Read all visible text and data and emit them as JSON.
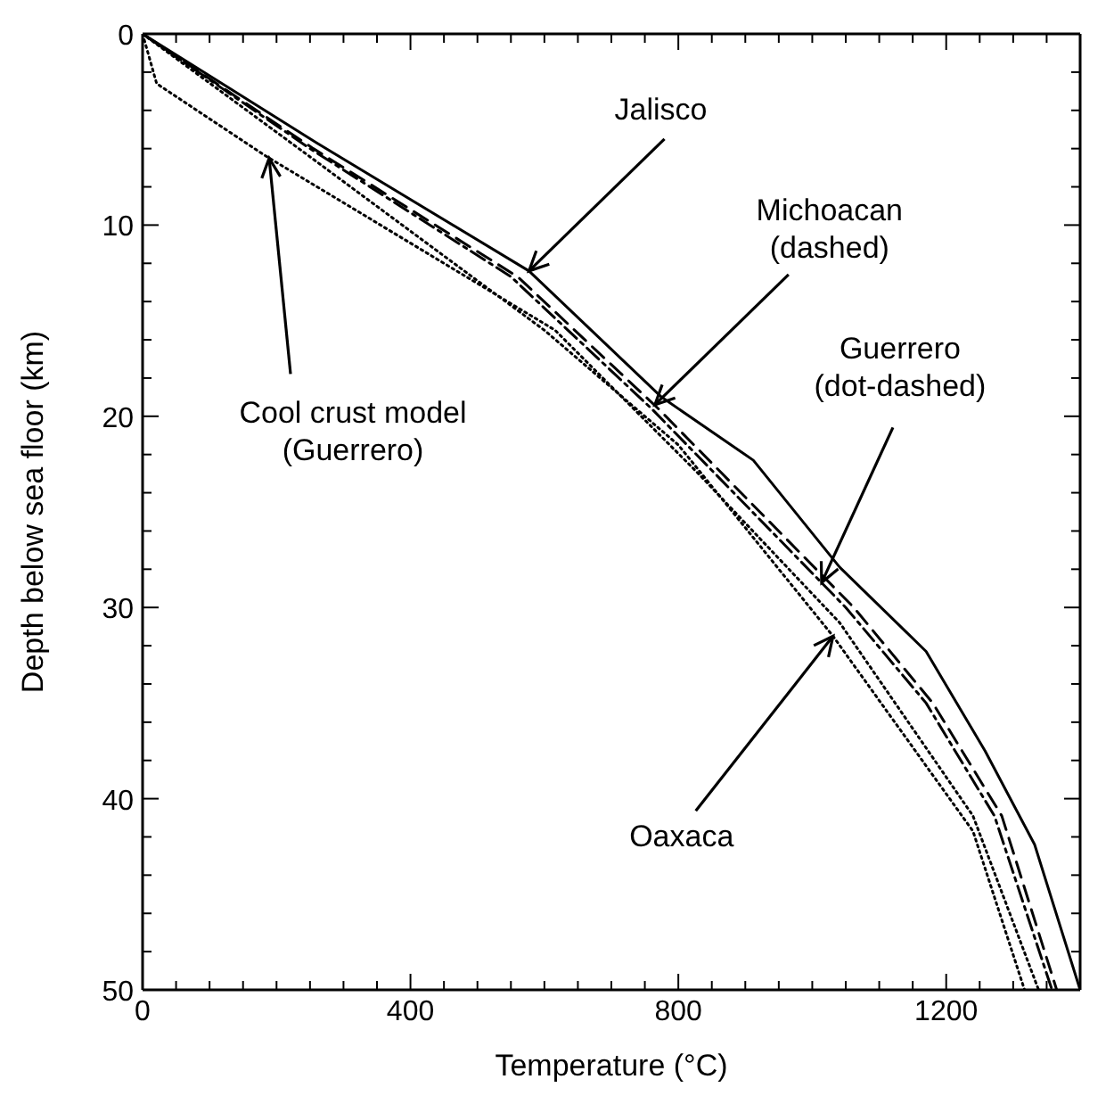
{
  "chart_data": {
    "type": "line",
    "xlabel": "Temperature (°C)",
    "ylabel": "Depth below sea floor (km)",
    "xlim": [
      0,
      1400
    ],
    "ylim": [
      50,
      0
    ],
    "xticks": [
      0,
      {
        "value": 50,
        "label": null
      },
      {
        "value": 100,
        "label": null
      },
      {
        "value": 150,
        "label": null
      },
      {
        "value": 200,
        "label": null
      },
      {
        "value": 250,
        "label": null
      },
      {
        "value": 300,
        "label": null
      },
      {
        "value": 350,
        "label": null
      },
      400,
      {
        "value": 450,
        "label": null
      },
      {
        "value": 500,
        "label": null
      },
      {
        "value": 550,
        "label": null
      },
      {
        "value": 600,
        "label": null
      },
      {
        "value": 650,
        "label": null
      },
      {
        "value": 700,
        "label": null
      },
      {
        "value": 750,
        "label": null
      },
      800,
      {
        "value": 850,
        "label": null
      },
      {
        "value": 900,
        "label": null
      },
      {
        "value": 950,
        "label": null
      },
      {
        "value": 1000,
        "label": null
      },
      {
        "value": 1050,
        "label": null
      },
      {
        "value": 1100,
        "label": null
      },
      {
        "value": 1150,
        "label": null
      },
      1200,
      {
        "value": 1250,
        "label": null
      },
      {
        "value": 1300,
        "label": null
      },
      {
        "value": 1350,
        "label": null
      }
    ],
    "yticks": [
      0,
      {
        "value": 2,
        "label": null
      },
      {
        "value": 4,
        "label": null
      },
      {
        "value": 6,
        "label": null
      },
      {
        "value": 8,
        "label": null
      },
      10,
      {
        "value": 12,
        "label": null
      },
      {
        "value": 14,
        "label": null
      },
      {
        "value": 16,
        "label": null
      },
      {
        "value": 18,
        "label": null
      },
      20,
      {
        "value": 22,
        "label": null
      },
      {
        "value": 24,
        "label": null
      },
      {
        "value": 26,
        "label": null
      },
      {
        "value": 28,
        "label": null
      },
      30,
      {
        "value": 32,
        "label": null
      },
      {
        "value": 34,
        "label": null
      },
      {
        "value": 36,
        "label": null
      },
      {
        "value": 38,
        "label": null
      },
      40,
      {
        "value": 42,
        "label": null
      },
      {
        "value": 44,
        "label": null
      },
      {
        "value": 46,
        "label": null
      },
      {
        "value": 48,
        "label": null
      },
      50
    ],
    "marker": "none",
    "series": [
      {
        "color": "#000000",
        "line_style": "solid",
        "x": [
          0,
          260,
          577,
          775,
          912,
          1041,
          1170,
          1258,
          1332,
          1400
        ],
        "values": [
          0,
          5.7,
          12.4,
          19,
          22.3,
          27.9,
          32.3,
          37.5,
          42.4,
          50
        ]
      },
      {
        "color": "#000000",
        "line_style": "dashed",
        "x": [
          0,
          255,
          560,
          770,
          1062,
          1180,
          1283,
          1365
        ],
        "values": [
          0,
          6,
          12.7,
          19.6,
          30,
          35,
          40.9,
          50
        ]
      },
      {
        "color": "#000000",
        "line_style": "dashdot",
        "x": [
          0,
          250,
          550,
          760,
          1050,
          1170,
          1272,
          1358
        ],
        "values": [
          0,
          6,
          12.7,
          19.6,
          30,
          35,
          40.9,
          50
        ]
      },
      {
        "color": "#000000",
        "line_style": "dotted",
        "x": [
          0,
          245,
          600,
          800,
          1031,
          1240,
          1317
        ],
        "values": [
          0,
          6.3,
          15.5,
          21.5,
          31.5,
          41.7,
          50
        ]
      },
      {
        "color": "#000000",
        "line_style": "dotted",
        "x": [
          0,
          21,
          180,
          616,
          830,
          1041,
          1240,
          1338
        ],
        "values": [
          0,
          2.6,
          6.3,
          15.5,
          23,
          30.8,
          40.9,
          50
        ]
      }
    ],
    "annotations": [
      {
        "text": "Jalisco",
        "x": 577,
        "y": 12.4
      },
      {
        "text": "Michoacan (dashed)",
        "x": 765,
        "y": 19.4
      },
      {
        "text": "Guerrero (dot-dashed)",
        "x": 1014,
        "y": 28.7
      },
      {
        "text": "Oaxaca",
        "x": 1031,
        "y": 31.5
      },
      {
        "text": "Cool crust model (Guerrero)",
        "x": 189,
        "y": 6.5
      }
    ]
  }
}
